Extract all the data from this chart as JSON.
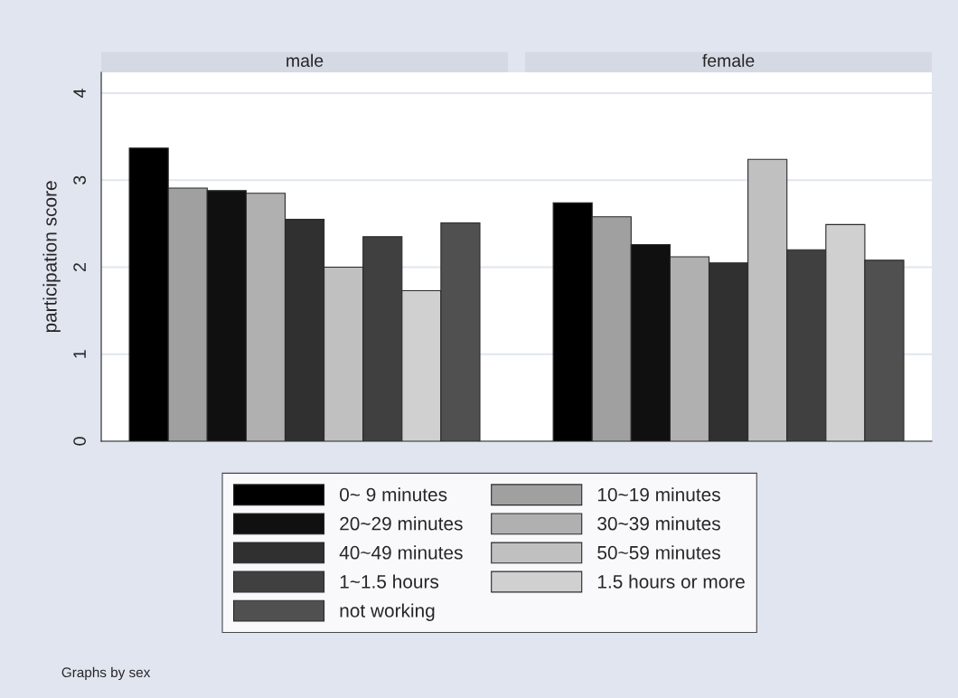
{
  "chart_data": {
    "type": "bar",
    "ylabel": "participation score",
    "categories": [
      "male",
      "female"
    ],
    "ylim": [
      0,
      4.24
    ],
    "yticks": [
      0,
      1,
      2,
      3,
      4
    ],
    "grid": "y",
    "legend": "bottom",
    "annotations": [
      "Graphs by sex"
    ],
    "series": [
      {
        "name": "0~ 9 minutes",
        "color": "#000000",
        "values": [
          3.37,
          2.74
        ]
      },
      {
        "name": "10~19 minutes",
        "color": "#a0a0a0",
        "values": [
          2.91,
          2.58
        ]
      },
      {
        "name": "20~29 minutes",
        "color": "#101010",
        "values": [
          2.88,
          2.26
        ]
      },
      {
        "name": "30~39 minutes",
        "color": "#b0b0b0",
        "values": [
          2.85,
          2.12
        ]
      },
      {
        "name": "40~49 minutes",
        "color": "#303030",
        "values": [
          2.55,
          2.05
        ]
      },
      {
        "name": "50~59 minutes",
        "color": "#c0c0c0",
        "values": [
          2.0,
          3.24
        ]
      },
      {
        "name": "1~1.5 hours",
        "color": "#404040",
        "values": [
          2.35,
          2.2
        ]
      },
      {
        "name": "1.5 hours or more",
        "color": "#d0d0d0",
        "values": [
          1.73,
          2.49
        ]
      },
      {
        "name": "not working",
        "color": "#505050",
        "values": [
          2.51,
          2.08
        ]
      }
    ]
  }
}
